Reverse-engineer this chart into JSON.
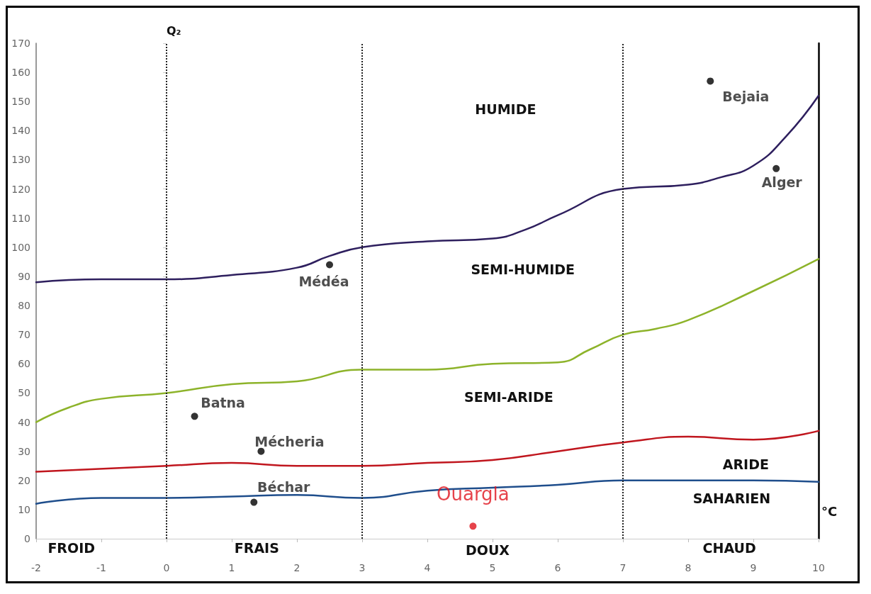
{
  "chart_data": {
    "type": "scatter",
    "ylabel": "Q₂",
    "xlabel": "°C",
    "xlim": [
      -2,
      10
    ],
    "xticks": [
      -2,
      -1,
      0,
      1,
      2,
      3,
      4,
      5,
      6,
      7,
      8,
      9,
      10
    ],
    "ylim": [
      0,
      170
    ],
    "yticks": [
      0,
      10,
      20,
      30,
      40,
      50,
      60,
      70,
      80,
      90,
      100,
      110,
      120,
      130,
      140,
      150,
      160,
      170
    ],
    "grid": false,
    "legend": false,
    "series": [
      {
        "type": "line",
        "marker": "none",
        "color": "#2e1f5e",
        "x": [
          -2,
          -1,
          0,
          1,
          2,
          2.5,
          3,
          4,
          5,
          5.5,
          6,
          7,
          8,
          8.5,
          9,
          9.5,
          10
        ],
        "values": [
          88,
          89,
          89,
          90.5,
          93,
          97,
          100,
          102,
          103,
          106,
          111,
          120,
          121.5,
          124,
          128,
          138,
          152
        ]
      },
      {
        "type": "line",
        "marker": "none",
        "color": "#8db32a",
        "x": [
          -2,
          -1.5,
          -1,
          0,
          1,
          2,
          3,
          4,
          5,
          6,
          6.5,
          7,
          7.5,
          8,
          9,
          10
        ],
        "values": [
          40,
          45,
          48,
          50,
          53,
          54,
          58,
          58,
          60,
          60.5,
          65,
          70,
          72,
          75,
          85,
          96
        ]
      },
      {
        "type": "line",
        "marker": "none",
        "color": "#c0161e",
        "x": [
          -2,
          0,
          1,
          2,
          3,
          4,
          5,
          6,
          7,
          8,
          9,
          10
        ],
        "values": [
          23,
          25,
          26,
          25,
          25,
          26,
          27,
          30,
          33,
          35,
          34,
          37
        ]
      },
      {
        "type": "line",
        "marker": "none",
        "color": "#1f4e8c",
        "x": [
          -2,
          -1,
          0,
          1,
          2,
          3,
          4,
          5,
          6,
          7,
          8,
          9,
          10
        ],
        "values": [
          12,
          14,
          14,
          14.5,
          15,
          14,
          16.5,
          17.5,
          18.5,
          20,
          20,
          20,
          19.5
        ]
      },
      {
        "name": "Bejaia",
        "marker": "circle",
        "color": "#000000",
        "x": [
          8.34
        ],
        "values": [
          157
        ]
      },
      {
        "name": "Alger",
        "marker": "circle",
        "color": "#000000",
        "x": [
          9.35
        ],
        "values": [
          127
        ]
      },
      {
        "name": "Médéa",
        "marker": "circle",
        "color": "#000000",
        "x": [
          2.5
        ],
        "values": [
          94
        ]
      },
      {
        "name": "Batna",
        "marker": "circle",
        "color": "#000000",
        "x": [
          0.43
        ],
        "values": [
          42
        ]
      },
      {
        "name": "Mécheria",
        "marker": "circle",
        "color": "#000000",
        "x": [
          1.45
        ],
        "values": [
          30
        ]
      },
      {
        "name": "Béchar",
        "marker": "circle",
        "color": "#000000",
        "x": [
          1.34
        ],
        "values": [
          12.5
        ]
      },
      {
        "name": "Ouargla",
        "marker": "circle",
        "color": "#e0141e",
        "x": [
          4.7
        ],
        "values": [
          4.3
        ]
      }
    ],
    "ref_lines": [
      {
        "axis": "x",
        "value": 0,
        "line_style": "dotted"
      },
      {
        "axis": "x",
        "value": 3,
        "line_style": "dotted"
      },
      {
        "axis": "x",
        "value": 7,
        "line_style": "dotted"
      }
    ],
    "annotations": [
      "HUMIDE",
      "SEMI-HUMIDE",
      "SEMI-ARIDE",
      "ARIDE",
      "SAHARIEN",
      "FROID",
      "FRAIS",
      "DOUX",
      "CHAUD"
    ]
  }
}
